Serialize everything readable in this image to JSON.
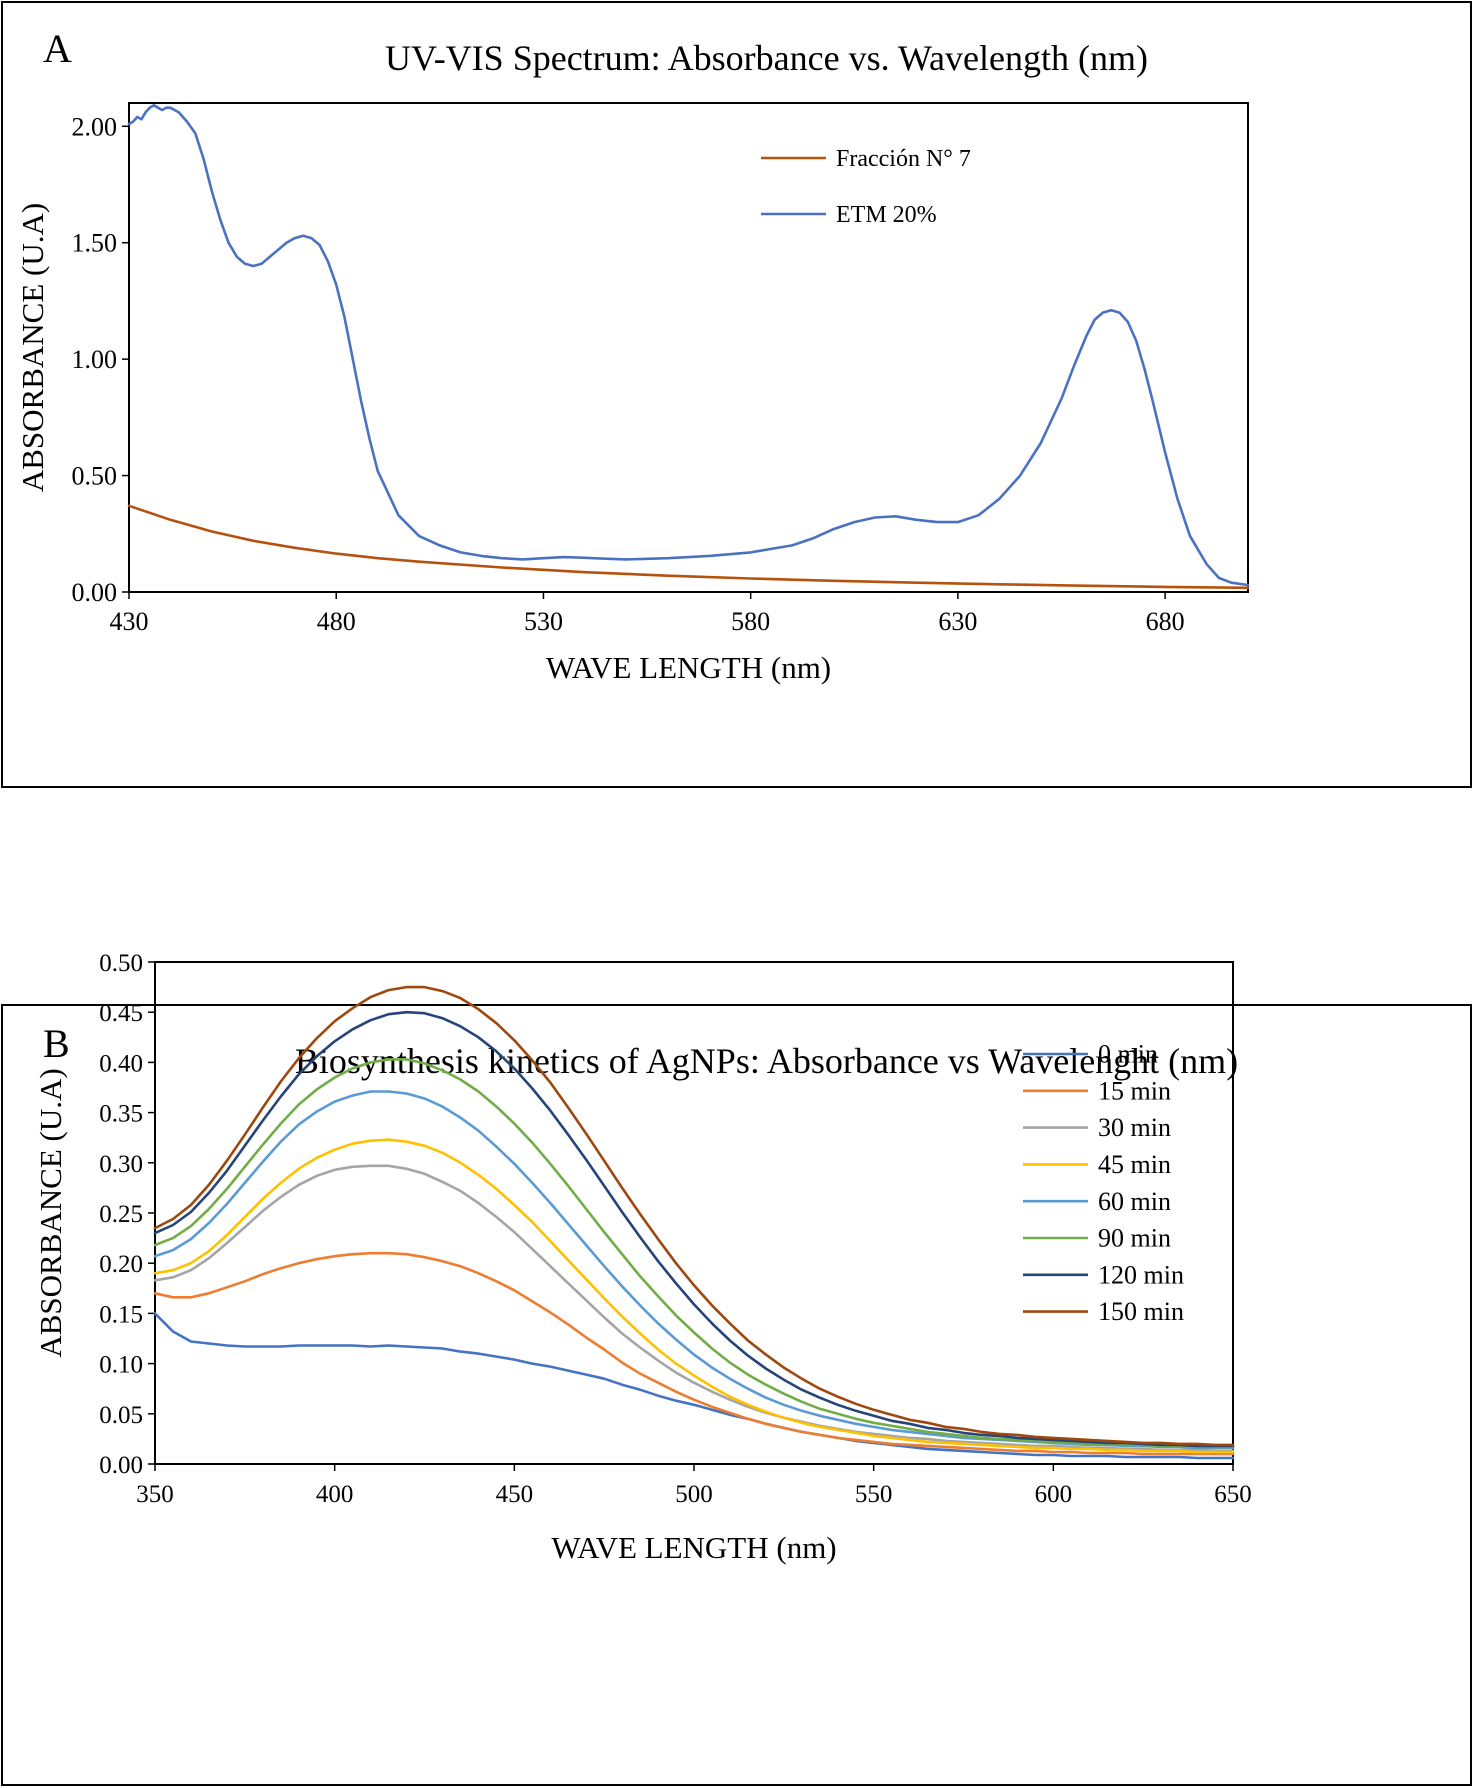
{
  "panels": [
    {
      "letter": "A"
    },
    {
      "letter": "B"
    }
  ],
  "chart_data": [
    {
      "type": "line",
      "title": "UV-VIS Spectrum: Absorbance vs. Wavelength (nm)",
      "xlabel": "WAVE LENGTH (nm)",
      "ylabel": "ABSORBANCE (U.A)",
      "xlim": [
        430,
        700
      ],
      "ylim": [
        0,
        2.1
      ],
      "xticks": [
        430,
        480,
        530,
        580,
        630,
        680
      ],
      "xtick_labels": [
        "430",
        "480",
        "530",
        "580",
        "630",
        "680"
      ],
      "yticks": [
        0,
        0.5,
        1.0,
        1.5,
        2.0
      ],
      "ytick_labels": [
        "0.00",
        "0.50",
        "1.00",
        "1.50",
        "2.00"
      ],
      "grid": false,
      "legend_position": "top-right",
      "series": [
        {
          "name": "Fracción N° 7",
          "color": "#b5520f",
          "x": [
            430,
            440,
            450,
            460,
            470,
            480,
            490,
            500,
            520,
            540,
            560,
            580,
            600,
            620,
            640,
            660,
            680,
            700
          ],
          "y": [
            0.37,
            0.31,
            0.26,
            0.22,
            0.19,
            0.165,
            0.145,
            0.13,
            0.105,
            0.085,
            0.07,
            0.058,
            0.048,
            0.04,
            0.033,
            0.027,
            0.022,
            0.018
          ]
        },
        {
          "name": "ETM 20%",
          "color": "#4a72c0",
          "x": [
            430,
            431,
            432,
            433,
            434,
            435,
            436,
            437,
            438,
            439,
            440,
            442,
            444,
            446,
            448,
            450,
            452,
            454,
            456,
            458,
            460,
            462,
            464,
            466,
            468,
            470,
            472,
            474,
            476,
            478,
            480,
            482,
            484,
            486,
            488,
            490,
            495,
            500,
            505,
            510,
            515,
            520,
            525,
            530,
            535,
            540,
            545,
            550,
            560,
            570,
            580,
            590,
            595,
            600,
            605,
            610,
            615,
            620,
            625,
            630,
            635,
            640,
            645,
            650,
            655,
            658,
            661,
            663,
            665,
            667,
            669,
            671,
            673,
            675,
            677,
            680,
            683,
            686,
            690,
            693,
            696,
            700
          ],
          "y": [
            2.01,
            2.02,
            2.04,
            2.03,
            2.06,
            2.08,
            2.09,
            2.08,
            2.07,
            2.08,
            2.08,
            2.06,
            2.02,
            1.97,
            1.86,
            1.72,
            1.6,
            1.5,
            1.44,
            1.41,
            1.4,
            1.41,
            1.44,
            1.47,
            1.5,
            1.52,
            1.53,
            1.52,
            1.49,
            1.42,
            1.32,
            1.18,
            1.0,
            0.82,
            0.66,
            0.52,
            0.33,
            0.24,
            0.2,
            0.17,
            0.155,
            0.145,
            0.14,
            0.145,
            0.15,
            0.147,
            0.143,
            0.14,
            0.145,
            0.155,
            0.17,
            0.2,
            0.23,
            0.27,
            0.3,
            0.32,
            0.325,
            0.31,
            0.3,
            0.3,
            0.33,
            0.4,
            0.5,
            0.64,
            0.83,
            0.97,
            1.1,
            1.17,
            1.2,
            1.21,
            1.2,
            1.16,
            1.08,
            0.96,
            0.82,
            0.6,
            0.4,
            0.24,
            0.12,
            0.06,
            0.04,
            0.03
          ]
        }
      ]
    },
    {
      "type": "line",
      "title": "Biosynthesis kinetics of AgNPs: Absorbance vs Wavelenght (nm)",
      "xlabel": "WAVE LENGTH (nm)",
      "ylabel": "ABSORBANCE (U.A)",
      "xlim": [
        350,
        650
      ],
      "ylim": [
        0,
        0.5
      ],
      "xticks": [
        350,
        400,
        450,
        500,
        550,
        600,
        650
      ],
      "xtick_labels": [
        "350",
        "400",
        "450",
        "500",
        "550",
        "600",
        "650"
      ],
      "yticks": [
        0,
        0.05,
        0.1,
        0.15,
        0.2,
        0.25,
        0.3,
        0.35,
        0.4,
        0.45,
        0.5
      ],
      "ytick_labels": [
        "0.00",
        "0.05",
        "0.10",
        "0.15",
        "0.20",
        "0.25",
        "0.30",
        "0.35",
        "0.40",
        "0.45",
        "0.50"
      ],
      "grid": false,
      "legend_position": "right",
      "x": [
        350,
        355,
        360,
        365,
        370,
        375,
        380,
        385,
        390,
        395,
        400,
        405,
        410,
        415,
        420,
        425,
        430,
        435,
        440,
        445,
        450,
        455,
        460,
        465,
        470,
        475,
        480,
        485,
        490,
        495,
        500,
        505,
        510,
        515,
        520,
        525,
        530,
        535,
        540,
        545,
        550,
        555,
        560,
        565,
        570,
        575,
        580,
        585,
        590,
        595,
        600,
        605,
        610,
        615,
        620,
        625,
        630,
        635,
        640,
        645,
        650
      ],
      "series": [
        {
          "name": "0 min",
          "color": "#4472c4",
          "values": [
            0.15,
            0.132,
            0.122,
            0.12,
            0.118,
            0.117,
            0.117,
            0.117,
            0.118,
            0.118,
            0.118,
            0.118,
            0.117,
            0.118,
            0.117,
            0.116,
            0.115,
            0.112,
            0.11,
            0.107,
            0.104,
            0.1,
            0.097,
            0.093,
            0.089,
            0.085,
            0.079,
            0.074,
            0.068,
            0.063,
            0.059,
            0.054,
            0.049,
            0.045,
            0.04,
            0.036,
            0.032,
            0.029,
            0.026,
            0.023,
            0.021,
            0.019,
            0.017,
            0.015,
            0.014,
            0.013,
            0.012,
            0.011,
            0.01,
            0.009,
            0.009,
            0.008,
            0.008,
            0.008,
            0.007,
            0.007,
            0.007,
            0.007,
            0.006,
            0.006,
            0.006
          ]
        },
        {
          "name": "15 min",
          "color": "#ed7d31",
          "values": [
            0.17,
            0.166,
            0.166,
            0.17,
            0.176,
            0.182,
            0.189,
            0.195,
            0.2,
            0.204,
            0.207,
            0.209,
            0.21,
            0.21,
            0.209,
            0.206,
            0.202,
            0.197,
            0.19,
            0.182,
            0.173,
            0.162,
            0.151,
            0.139,
            0.126,
            0.114,
            0.101,
            0.09,
            0.081,
            0.072,
            0.064,
            0.057,
            0.051,
            0.045,
            0.04,
            0.036,
            0.032,
            0.029,
            0.026,
            0.024,
            0.022,
            0.02,
            0.019,
            0.018,
            0.017,
            0.016,
            0.015,
            0.014,
            0.013,
            0.013,
            0.012,
            0.012,
            0.011,
            0.011,
            0.011,
            0.01,
            0.01,
            0.01,
            0.01,
            0.01,
            0.01
          ]
        },
        {
          "name": "30 min",
          "color": "#a5a5a5",
          "values": [
            0.183,
            0.186,
            0.193,
            0.205,
            0.22,
            0.236,
            0.252,
            0.266,
            0.278,
            0.287,
            0.293,
            0.296,
            0.297,
            0.297,
            0.294,
            0.289,
            0.281,
            0.272,
            0.26,
            0.246,
            0.231,
            0.214,
            0.197,
            0.18,
            0.163,
            0.146,
            0.13,
            0.116,
            0.103,
            0.091,
            0.081,
            0.072,
            0.064,
            0.057,
            0.051,
            0.046,
            0.042,
            0.038,
            0.035,
            0.032,
            0.03,
            0.028,
            0.026,
            0.025,
            0.023,
            0.022,
            0.021,
            0.02,
            0.019,
            0.018,
            0.018,
            0.017,
            0.016,
            0.016,
            0.015,
            0.015,
            0.014,
            0.014,
            0.014,
            0.013,
            0.013
          ]
        },
        {
          "name": "45 min",
          "color": "#ffc000",
          "values": [
            0.19,
            0.193,
            0.2,
            0.212,
            0.228,
            0.246,
            0.264,
            0.28,
            0.294,
            0.305,
            0.313,
            0.319,
            0.322,
            0.323,
            0.321,
            0.317,
            0.31,
            0.3,
            0.288,
            0.274,
            0.258,
            0.241,
            0.222,
            0.203,
            0.184,
            0.165,
            0.147,
            0.13,
            0.114,
            0.1,
            0.088,
            0.077,
            0.067,
            0.059,
            0.052,
            0.046,
            0.041,
            0.037,
            0.034,
            0.031,
            0.028,
            0.026,
            0.024,
            0.022,
            0.021,
            0.02,
            0.019,
            0.018,
            0.017,
            0.016,
            0.016,
            0.015,
            0.015,
            0.014,
            0.014,
            0.013,
            0.013,
            0.013,
            0.012,
            0.012,
            0.012
          ]
        },
        {
          "name": "60 min",
          "color": "#5b9bd5",
          "values": [
            0.207,
            0.213,
            0.224,
            0.24,
            0.259,
            0.28,
            0.301,
            0.321,
            0.338,
            0.351,
            0.361,
            0.367,
            0.371,
            0.371,
            0.369,
            0.364,
            0.356,
            0.345,
            0.332,
            0.316,
            0.299,
            0.28,
            0.26,
            0.239,
            0.218,
            0.197,
            0.177,
            0.158,
            0.14,
            0.124,
            0.109,
            0.096,
            0.085,
            0.075,
            0.066,
            0.059,
            0.053,
            0.048,
            0.044,
            0.04,
            0.037,
            0.034,
            0.032,
            0.03,
            0.028,
            0.026,
            0.025,
            0.024,
            0.023,
            0.022,
            0.021,
            0.02,
            0.019,
            0.019,
            0.018,
            0.018,
            0.017,
            0.017,
            0.016,
            0.016,
            0.016
          ]
        },
        {
          "name": "90 min",
          "color": "#70ad47",
          "values": [
            0.218,
            0.225,
            0.237,
            0.254,
            0.274,
            0.296,
            0.318,
            0.339,
            0.358,
            0.373,
            0.385,
            0.394,
            0.4,
            0.403,
            0.403,
            0.399,
            0.392,
            0.383,
            0.371,
            0.356,
            0.339,
            0.32,
            0.299,
            0.277,
            0.254,
            0.231,
            0.209,
            0.187,
            0.167,
            0.148,
            0.131,
            0.115,
            0.101,
            0.089,
            0.079,
            0.07,
            0.062,
            0.055,
            0.05,
            0.045,
            0.041,
            0.038,
            0.035,
            0.032,
            0.03,
            0.028,
            0.026,
            0.025,
            0.024,
            0.023,
            0.022,
            0.021,
            0.02,
            0.02,
            0.019,
            0.019,
            0.018,
            0.018,
            0.017,
            0.017,
            0.017
          ]
        },
        {
          "name": "120 min",
          "color": "#264478",
          "values": [
            0.23,
            0.238,
            0.251,
            0.27,
            0.292,
            0.317,
            0.342,
            0.366,
            0.388,
            0.406,
            0.421,
            0.433,
            0.442,
            0.448,
            0.45,
            0.449,
            0.444,
            0.436,
            0.425,
            0.411,
            0.394,
            0.374,
            0.352,
            0.328,
            0.303,
            0.277,
            0.251,
            0.226,
            0.202,
            0.18,
            0.159,
            0.14,
            0.123,
            0.108,
            0.095,
            0.084,
            0.074,
            0.066,
            0.059,
            0.053,
            0.048,
            0.043,
            0.04,
            0.036,
            0.034,
            0.031,
            0.029,
            0.028,
            0.026,
            0.025,
            0.024,
            0.023,
            0.022,
            0.021,
            0.021,
            0.02,
            0.019,
            0.019,
            0.018,
            0.018,
            0.018
          ]
        },
        {
          "name": "150 min",
          "color": "#9e480e",
          "values": [
            0.235,
            0.244,
            0.258,
            0.278,
            0.302,
            0.328,
            0.355,
            0.381,
            0.404,
            0.424,
            0.441,
            0.454,
            0.465,
            0.472,
            0.475,
            0.475,
            0.471,
            0.464,
            0.453,
            0.439,
            0.422,
            0.402,
            0.38,
            0.355,
            0.329,
            0.302,
            0.275,
            0.249,
            0.224,
            0.2,
            0.178,
            0.158,
            0.14,
            0.123,
            0.109,
            0.096,
            0.085,
            0.075,
            0.067,
            0.06,
            0.054,
            0.049,
            0.044,
            0.041,
            0.037,
            0.035,
            0.032,
            0.03,
            0.029,
            0.027,
            0.026,
            0.025,
            0.024,
            0.023,
            0.022,
            0.021,
            0.021,
            0.02,
            0.02,
            0.019,
            0.019
          ]
        }
      ]
    }
  ]
}
